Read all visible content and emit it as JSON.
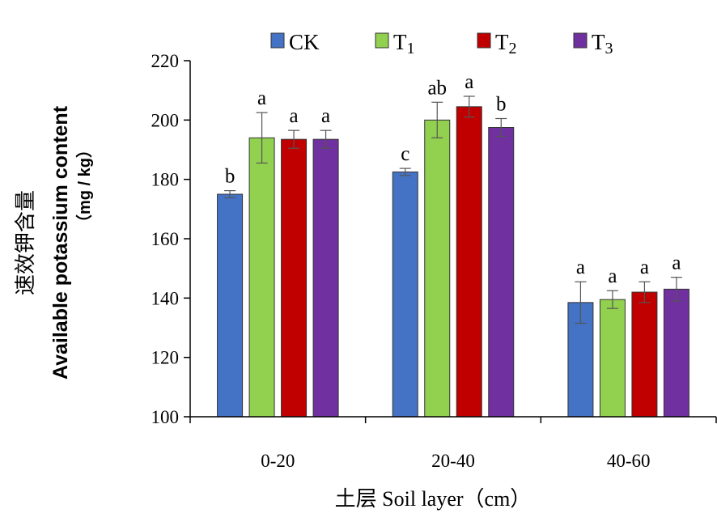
{
  "chart_data": {
    "type": "bar",
    "title": "",
    "xlabel": "土层  Soil layer（cm）",
    "ylabel_cn": "速效钾含量",
    "ylabel_en": "Available  potassium content",
    "ylabel_unit": "（mg / kg）",
    "categories": [
      "0-20",
      "20-40",
      "40-60"
    ],
    "ylim": [
      100,
      220
    ],
    "yticks": [
      100,
      120,
      140,
      160,
      180,
      200,
      220
    ],
    "legend_position": "top",
    "grid": false,
    "series": [
      {
        "name": "CK",
        "name_base": "CK",
        "name_sub": "",
        "color": "#4472c4",
        "values": [
          175,
          182.5,
          138.5
        ],
        "errors": [
          1.2,
          1.2,
          7.0
        ],
        "labels": [
          "b",
          "c",
          "a"
        ]
      },
      {
        "name": "T1",
        "name_base": "T",
        "name_sub": "1",
        "color": "#92d050",
        "values": [
          194,
          200,
          139.5
        ],
        "errors": [
          8.5,
          6.0,
          3.0
        ],
        "labels": [
          "a",
          "ab",
          "a"
        ]
      },
      {
        "name": "T2",
        "name_base": "T",
        "name_sub": "2",
        "color": "#c00000",
        "values": [
          193.5,
          204.5,
          142
        ],
        "errors": [
          3.0,
          3.5,
          3.5
        ],
        "labels": [
          "a",
          "a",
          "a"
        ]
      },
      {
        "name": "T3",
        "name_base": "T",
        "name_sub": "3",
        "color": "#7030a0",
        "values": [
          193.5,
          197.5,
          143
        ],
        "errors": [
          3.0,
          3.0,
          4.0
        ],
        "labels": [
          "a",
          "b",
          "a"
        ]
      }
    ]
  }
}
